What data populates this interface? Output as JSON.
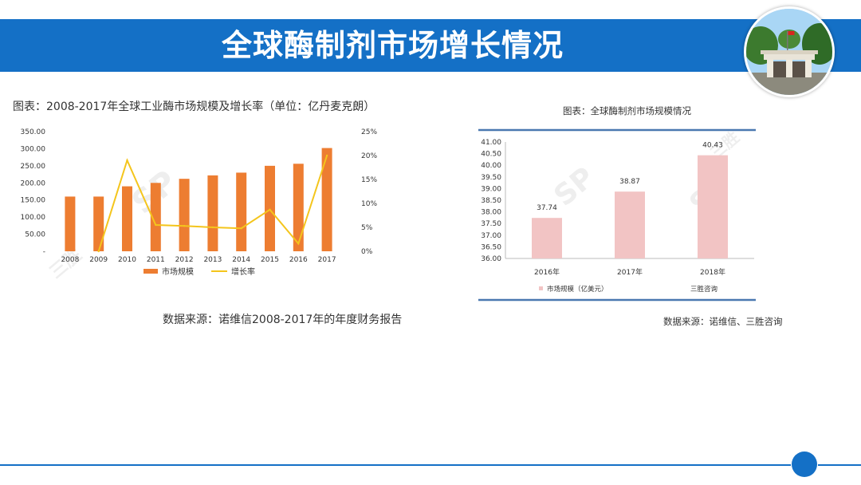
{
  "slide": {
    "title": "全球酶制剂市场增长情况"
  },
  "left": {
    "caption": "图表：2008-2017年全球工业酶市场规模及增长率（单位：亿丹麦克朗）",
    "source": "数据来源：诺维信2008-2017年的年度财务报告"
  },
  "right": {
    "caption": "图表：全球酶制剂市场规模情况",
    "source": "数据来源：诺维信、三胜咨询"
  },
  "chart_data": [
    {
      "type": "bar",
      "categories": [
        "2008",
        "2009",
        "2010",
        "2011",
        "2012",
        "2013",
        "2014",
        "2015",
        "2016",
        "2017"
      ],
      "series": [
        {
          "name": "市场规模",
          "type": "bar",
          "color": "#ed7d31",
          "axis": "left",
          "values": [
            160,
            160,
            190,
            200,
            212,
            222,
            230,
            250,
            256,
            302
          ]
        },
        {
          "name": "增长率",
          "type": "line",
          "color": "#f4c51c",
          "axis": "right",
          "values": [
            null,
            0,
            19,
            5.5,
            5.3,
            5,
            4.8,
            8.7,
            1.6,
            20
          ]
        }
      ],
      "y_ticks": [
        "350.00",
        "300.00",
        "250.00",
        "200.00",
        "150.00",
        "100.00",
        "50.00",
        "-"
      ],
      "ylim": [
        0,
        350
      ],
      "y2_ticks": [
        "25%",
        "20%",
        "15%",
        "10%",
        "5%",
        "0%"
      ],
      "y2lim": [
        0,
        25
      ],
      "legend": "bottom",
      "grid": false
    },
    {
      "type": "bar",
      "categories": [
        "2016年",
        "2017年",
        "2018年"
      ],
      "series": [
        {
          "name": "市场规模（亿美元）",
          "color": "#f2c4c4",
          "values": [
            37.74,
            38.87,
            40.43
          ]
        }
      ],
      "value_labels": [
        "37.74",
        "38.87",
        "40.43"
      ],
      "y_ticks": [
        "41.00",
        "40.50",
        "40.00",
        "39.50",
        "39.00",
        "38.50",
        "38.00",
        "37.50",
        "37.00",
        "36.50",
        "36.00"
      ],
      "ylim": [
        36,
        41
      ],
      "legend": "bottom-left",
      "legend_extra": "三胜咨询",
      "grid": false
    }
  ]
}
